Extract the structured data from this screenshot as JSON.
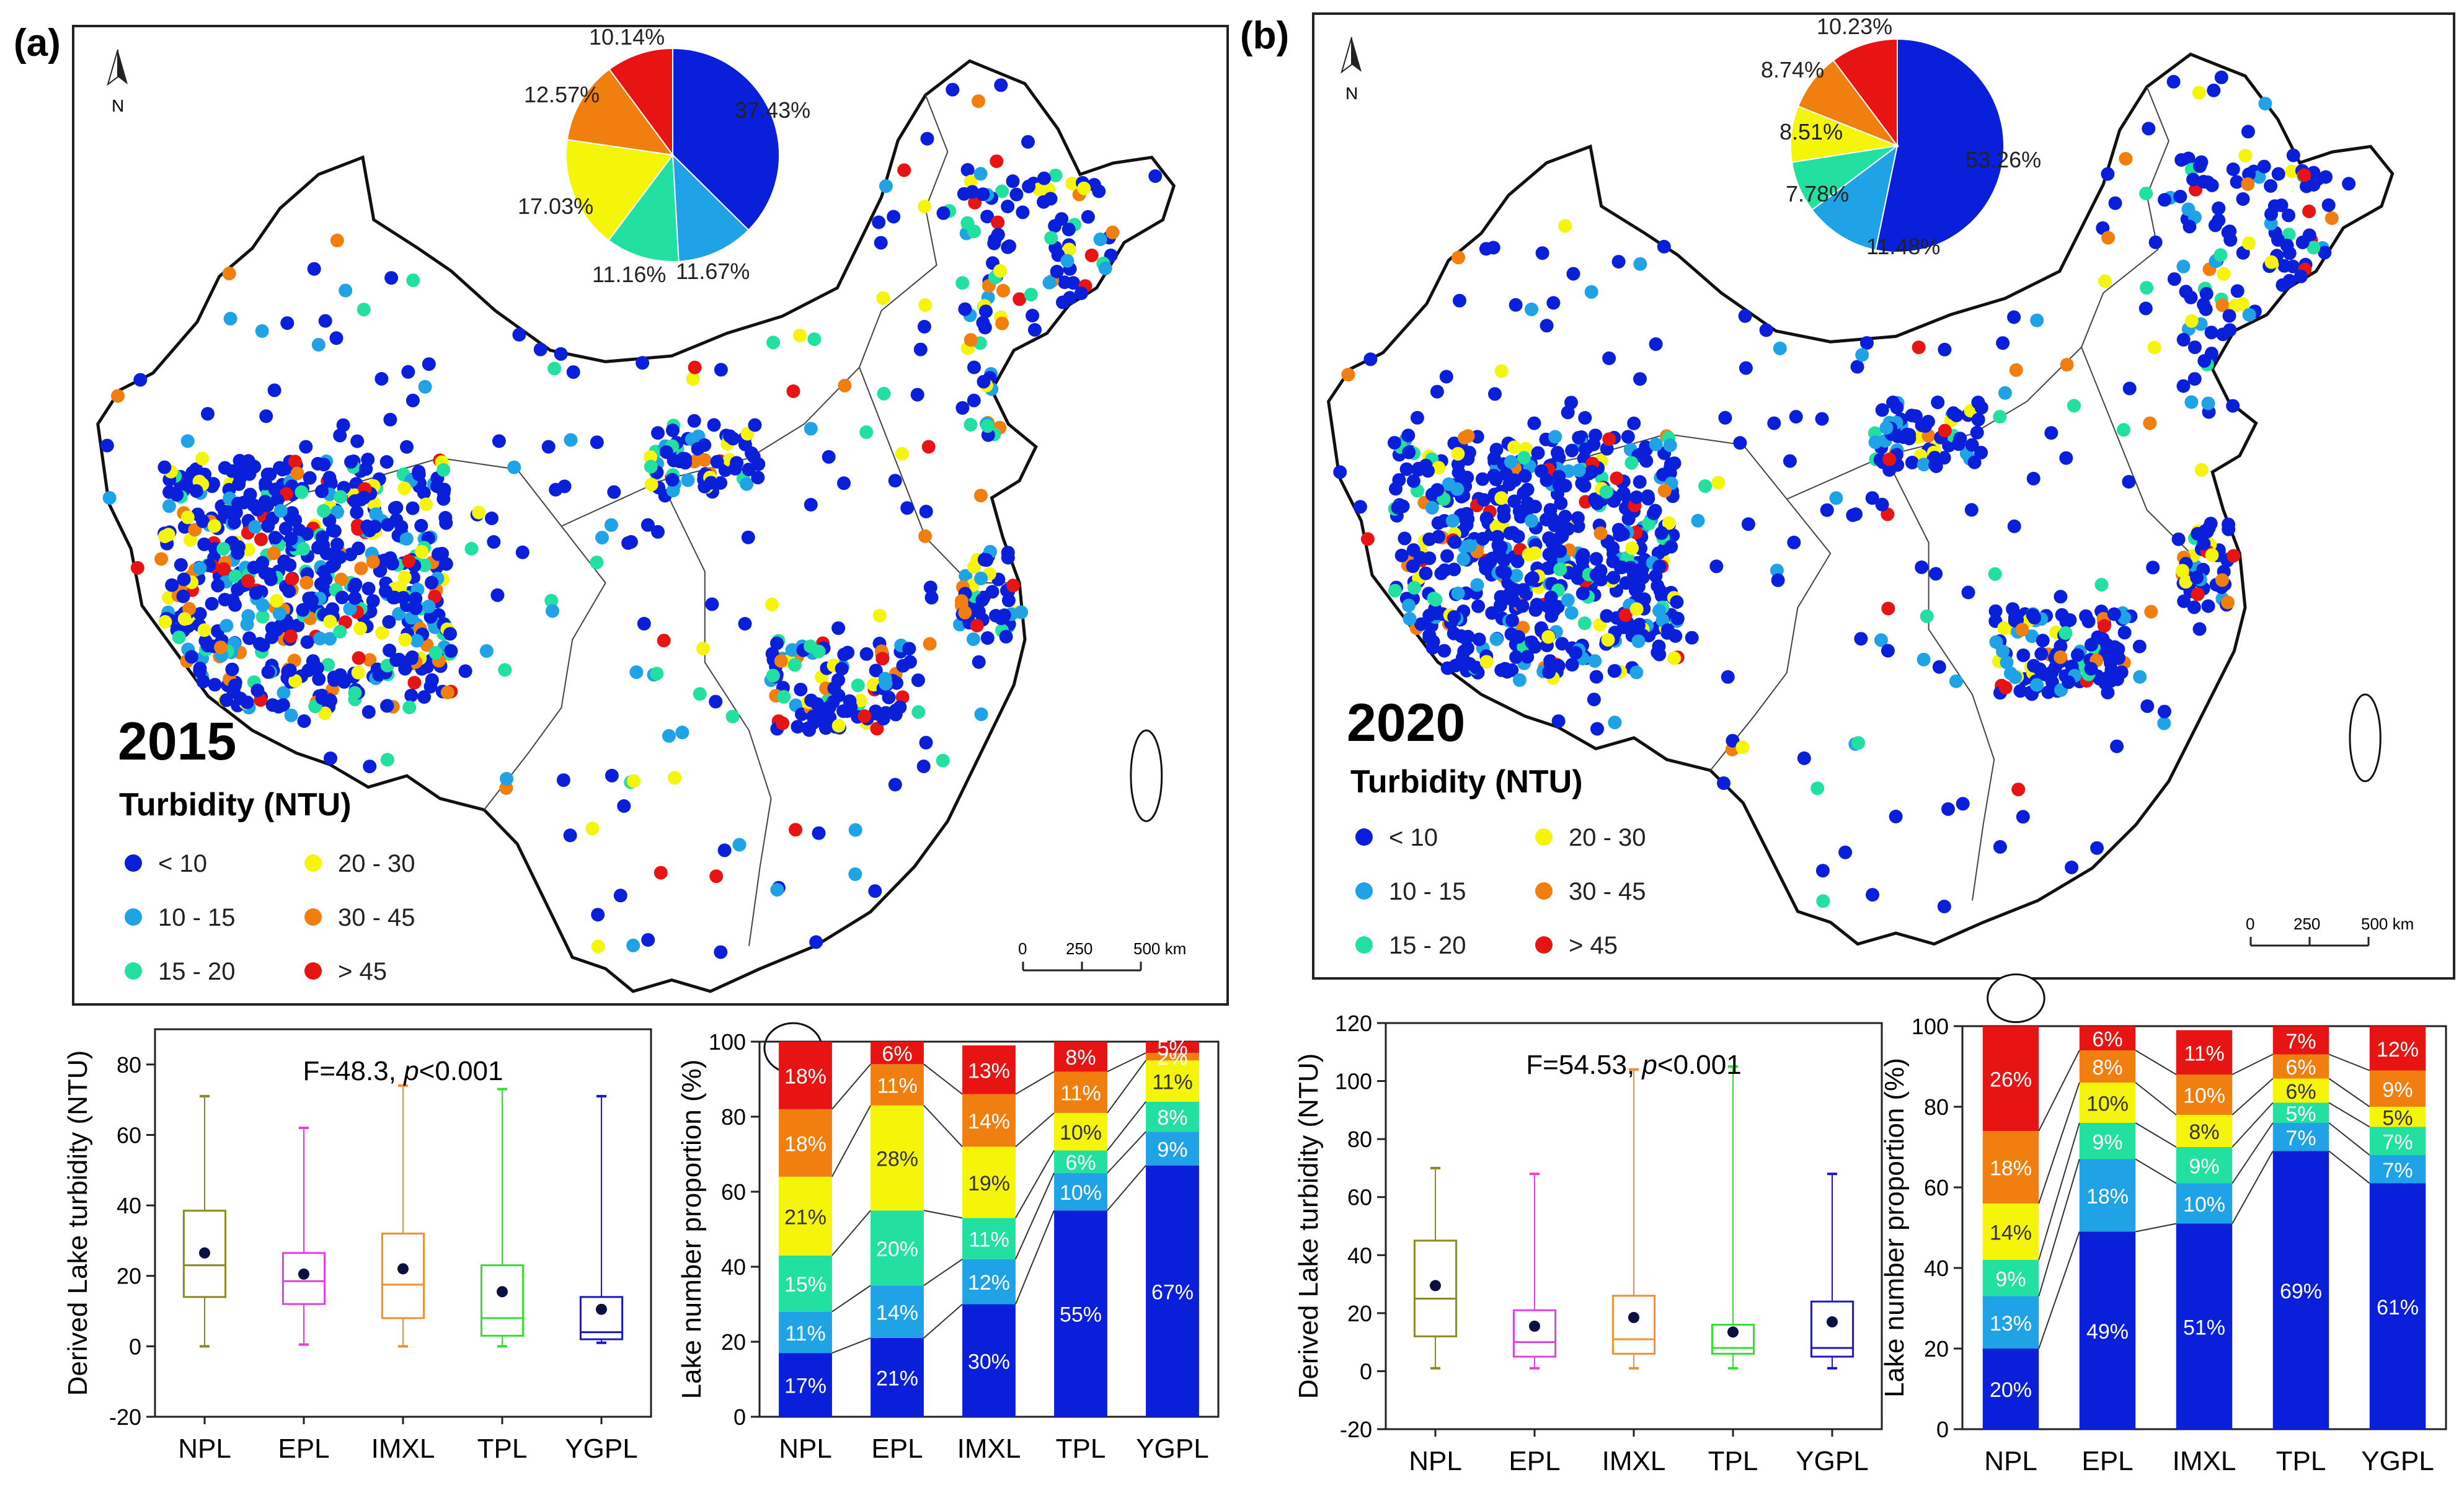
{
  "colors": {
    "lt10": "#0a1fd9",
    "r10_15": "#1fa2e6",
    "r15_20": "#21e0a0",
    "r20_30": "#f5f50a",
    "r30_45": "#f07f10",
    "gt45": "#e81414"
  },
  "legend": {
    "title": "Turbidity (NTU)",
    "items": [
      "< 10",
      "10 - 15",
      "15 - 20",
      "20 - 30",
      "30 - 45",
      "> 45"
    ]
  },
  "scalebar": {
    "ticks": [
      "0",
      "250",
      "500 km"
    ]
  },
  "north": "N",
  "panels": [
    {
      "label": "(a)",
      "year": "2015",
      "pie_labels": [
        "37.43%",
        "11.67%",
        "11.16%",
        "17.03%",
        "12.57%",
        "10.14%"
      ],
      "box_annotation": {
        "prefix": "F=48.3, ",
        "p": "p",
        "suffix": "<0.001"
      },
      "box_ylabel": "Derived Lake turbidity (NTU)",
      "bar_ylabel": "Lake number proportion (%)"
    },
    {
      "label": "(b)",
      "year": "2020",
      "pie_labels": [
        "53.26%",
        "11.48%",
        "7.78%",
        "8.51%",
        "8.74%",
        "10.23%"
      ],
      "box_annotation": {
        "prefix": "F=54.53, ",
        "p": "p",
        "suffix": "<0.001"
      },
      "box_ylabel": "Derived Lake turbidity (NTU)",
      "bar_ylabel": "Lake number proportion (%)"
    }
  ],
  "chart_data": [
    {
      "type": "pie",
      "panel": "(a)",
      "title": "2015",
      "categories": [
        "< 10",
        "10 - 15",
        "15 - 20",
        "20 - 30",
        "30 - 45",
        "> 45"
      ],
      "values": [
        37.43,
        11.67,
        11.16,
        17.03,
        12.57,
        10.14
      ]
    },
    {
      "type": "box",
      "panel": "(a)",
      "categories": [
        "NPL",
        "EPL",
        "IMXL",
        "TPL",
        "YGPL"
      ],
      "ylabel": "Derived Lake turbidity (NTU)",
      "ylim": [
        -20,
        90
      ],
      "yticks": [
        -20,
        0,
        20,
        40,
        60,
        80
      ],
      "boxes": [
        {
          "min": 0,
          "q1": 14,
          "median": 23,
          "q3": 38.5,
          "max": 71,
          "mean": 26.5
        },
        {
          "min": 0.5,
          "q1": 12,
          "median": 18.5,
          "q3": 26.5,
          "max": 62,
          "mean": 20.5
        },
        {
          "min": 0,
          "q1": 8,
          "median": 17.5,
          "q3": 32,
          "max": 74,
          "mean": 22
        },
        {
          "min": 0,
          "q1": 3,
          "median": 8,
          "q3": 23,
          "max": 73,
          "mean": 15.5
        },
        {
          "min": 1,
          "q1": 2,
          "median": 4,
          "q3": 14,
          "max": 71,
          "mean": 10.5
        }
      ],
      "colors": [
        "#8a8a1e",
        "#e23fe2",
        "#f09030",
        "#30e030",
        "#1818c8"
      ],
      "annotation": "F=48.3, p<0.001"
    },
    {
      "type": "bar",
      "stacked": true,
      "panel": "(a)",
      "categories": [
        "NPL",
        "EPL",
        "IMXL",
        "TPL",
        "YGPL"
      ],
      "ylabel": "Lake number proportion (%)",
      "ylim": [
        0,
        100
      ],
      "yticks": [
        0,
        20,
        40,
        60,
        80,
        100
      ],
      "series": [
        {
          "name": "< 10",
          "values": [
            17,
            21,
            30,
            55,
            67
          ]
        },
        {
          "name": "10 - 15",
          "values": [
            11,
            14,
            12,
            10,
            9
          ]
        },
        {
          "name": "15 - 20",
          "values": [
            15,
            20,
            11,
            6,
            8
          ]
        },
        {
          "name": "20 - 30",
          "values": [
            21,
            28,
            19,
            10,
            11
          ]
        },
        {
          "name": "30 - 45",
          "values": [
            18,
            11,
            14,
            11,
            2
          ]
        },
        {
          "name": "> 45",
          "values": [
            18,
            6,
            13,
            8,
            5
          ]
        }
      ],
      "labels": [
        [
          "17%",
          "21%",
          "30%",
          "55%",
          "67%"
        ],
        [
          "11%",
          "14%",
          "12%",
          "10%",
          "9%"
        ],
        [
          "15%",
          "20%",
          "11%",
          "6%",
          "8%"
        ],
        [
          "21%",
          "28%",
          "19%",
          "10%",
          "11%"
        ],
        [
          "18%",
          "11%",
          "14%",
          "11%",
          "2%"
        ],
        [
          "18%",
          "6%",
          "13%",
          "8%",
          "5%"
        ]
      ]
    },
    {
      "type": "pie",
      "panel": "(b)",
      "title": "2020",
      "categories": [
        "< 10",
        "10 - 15",
        "15 - 20",
        "20 - 30",
        "30 - 45",
        "> 45"
      ],
      "values": [
        53.26,
        11.48,
        7.78,
        8.51,
        8.74,
        10.23
      ]
    },
    {
      "type": "box",
      "panel": "(b)",
      "categories": [
        "NPL",
        "EPL",
        "IMXL",
        "TPL",
        "YGPL"
      ],
      "ylabel": "Derived Lake turbidity (NTU)",
      "ylim": [
        -20,
        120
      ],
      "yticks": [
        -20,
        0,
        20,
        40,
        60,
        80,
        100,
        120
      ],
      "boxes": [
        {
          "min": 1,
          "q1": 12,
          "median": 25,
          "q3": 45,
          "max": 70,
          "mean": 29.5
        },
        {
          "min": 1,
          "q1": 5,
          "median": 10,
          "q3": 21,
          "max": 68,
          "mean": 15.5
        },
        {
          "min": 1,
          "q1": 6,
          "median": 11,
          "q3": 26,
          "max": 104,
          "mean": 18.5
        },
        {
          "min": 1,
          "q1": 6,
          "median": 8,
          "q3": 16,
          "max": 105,
          "mean": 13.5
        },
        {
          "min": 1,
          "q1": 5,
          "median": 8,
          "q3": 24,
          "max": 68,
          "mean": 17
        }
      ],
      "colors": [
        "#8a8a1e",
        "#e23fe2",
        "#f09030",
        "#30e030",
        "#1818c8"
      ],
      "annotation": "F=54.53, p<0.001"
    },
    {
      "type": "bar",
      "stacked": true,
      "panel": "(b)",
      "categories": [
        "NPL",
        "EPL",
        "IMXL",
        "TPL",
        "YGPL"
      ],
      "ylabel": "Lake number proportion (%)",
      "ylim": [
        0,
        100
      ],
      "yticks": [
        0,
        20,
        40,
        60,
        80,
        100
      ],
      "series": [
        {
          "name": "< 10",
          "values": [
            20,
            49,
            51,
            69,
            61
          ]
        },
        {
          "name": "10 - 15",
          "values": [
            13,
            18,
            10,
            7,
            7
          ]
        },
        {
          "name": "15 - 20",
          "values": [
            9,
            9,
            9,
            5,
            7
          ]
        },
        {
          "name": "20 - 30",
          "values": [
            14,
            10,
            8,
            6,
            5
          ]
        },
        {
          "name": "30 - 45",
          "values": [
            18,
            8,
            10,
            6,
            9
          ]
        },
        {
          "name": "> 45",
          "values": [
            26,
            6,
            11,
            7,
            12
          ]
        }
      ],
      "labels": [
        [
          "20%",
          "49%",
          "51%",
          "69%",
          "61%"
        ],
        [
          "13%",
          "18%",
          "10%",
          "7%",
          "7%"
        ],
        [
          "9%",
          "9%",
          "9%",
          "5%",
          "7%"
        ],
        [
          "14%",
          "10%",
          "8%",
          "6%",
          "5%"
        ],
        [
          "18%",
          "8%",
          "10%",
          "6%",
          "9%"
        ],
        [
          "26%",
          "6%",
          "11%",
          "7%",
          "12%"
        ]
      ]
    }
  ]
}
